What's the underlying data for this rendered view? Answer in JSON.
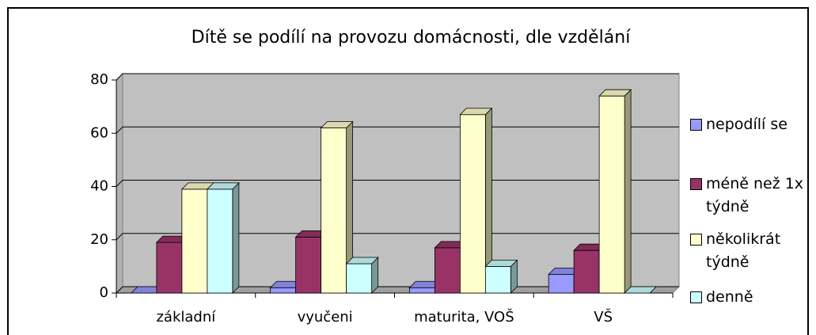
{
  "chart_data": {
    "type": "bar3d",
    "title": "Dítě se podílí na provozu domácnosti, dle vzdělání",
    "categories": [
      "základní",
      "vyučeni",
      "maturita, VOŠ",
      "VŠ"
    ],
    "series": [
      {
        "name": "nepodílí se",
        "color": "#9999ff",
        "values": [
          0,
          2,
          2,
          7
        ]
      },
      {
        "name": "méně než 1x týdně",
        "color": "#993366",
        "values": [
          19,
          21,
          17,
          16
        ]
      },
      {
        "name": "několikrát týdně",
        "color": "#ffffcc",
        "values": [
          39,
          62,
          67,
          74
        ]
      },
      {
        "name": "denně",
        "color": "#ccffff",
        "values": [
          39,
          11,
          10,
          0
        ]
      }
    ],
    "ylim": [
      0,
      80
    ],
    "yticks": [
      0,
      20,
      40,
      60,
      80
    ],
    "grid": true
  }
}
